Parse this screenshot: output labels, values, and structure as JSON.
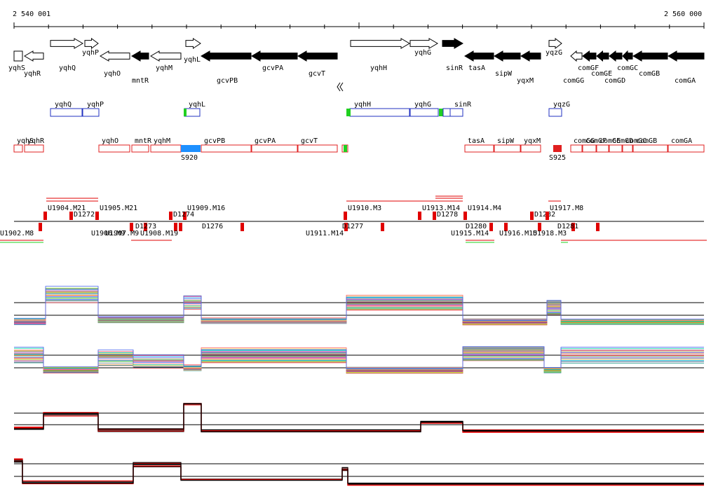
{
  "ruler": {
    "start_label": "2 540 001",
    "end_label": "2 560 000"
  },
  "colors": {
    "background": "#ffffff",
    "gene_outline": "#000000",
    "gene_fill_dark": "#000000",
    "operon_blue": "#2030c0",
    "operon_red": "#e02020",
    "highlight_blue": "#1e90ff",
    "marker_green": "#20d020",
    "signal_red": "#e00000",
    "signal_black": "#000000"
  },
  "genes": [
    {
      "label": "yqhS",
      "strand": "-",
      "shape": "box",
      "fill": "white"
    },
    {
      "label": "yqhR",
      "strand": "-",
      "fill": "white"
    },
    {
      "label": "yqhQ",
      "strand": "+",
      "fill": "white"
    },
    {
      "label": "yqhP",
      "strand": "+",
      "fill": "white"
    },
    {
      "label": "yqhO",
      "strand": "-",
      "fill": "white"
    },
    {
      "label": "mntR",
      "strand": "-",
      "fill": "black"
    },
    {
      "label": "yqhM",
      "strand": "-",
      "fill": "white"
    },
    {
      "label": "yqhL",
      "strand": "+",
      "fill": "white"
    },
    {
      "label": "gcvPB",
      "strand": "-",
      "fill": "black"
    },
    {
      "label": "gcvPA",
      "strand": "-",
      "fill": "black"
    },
    {
      "label": "gcvT",
      "strand": "-",
      "fill": "black"
    },
    {
      "label": "yqhH",
      "strand": "+",
      "fill": "white"
    },
    {
      "label": "yqhG",
      "strand": "+",
      "fill": "white"
    },
    {
      "label": "sinR",
      "strand": "+",
      "fill": "black"
    },
    {
      "label": "tasA",
      "strand": "-",
      "fill": "black"
    },
    {
      "label": "sipW",
      "strand": "-",
      "fill": "black"
    },
    {
      "label": "yqxM",
      "strand": "-",
      "fill": "black"
    },
    {
      "label": "yqzG",
      "strand": "+",
      "fill": "white"
    },
    {
      "label": "comGG",
      "strand": "-",
      "fill": "white"
    },
    {
      "label": "comGF",
      "strand": "-",
      "fill": "black"
    },
    {
      "label": "comGE",
      "strand": "-",
      "fill": "black"
    },
    {
      "label": "comGD",
      "strand": "-",
      "fill": "black"
    },
    {
      "label": "comGC",
      "strand": "-",
      "fill": "black"
    },
    {
      "label": "comGB",
      "strand": "-",
      "fill": "black"
    },
    {
      "label": "comGA",
      "strand": "-",
      "fill": "black"
    }
  ],
  "plus_operons": [
    "yqhQ",
    "yqhP",
    "yqhL",
    "yqhH",
    "yqhG",
    "sinR",
    "yqzG"
  ],
  "minus_operons": [
    "yqhS",
    "yqhR",
    "yqhO",
    "mntR",
    "yqhM",
    "gcvPB",
    "gcvPA",
    "gcvT",
    "tasA",
    "sipW",
    "yqxM",
    "comGG",
    "comGF",
    "comGE",
    "comGD",
    "comGC",
    "comGB",
    "comGA"
  ],
  "operon_highlights": [
    "S920",
    "S925"
  ],
  "segments_upper": [
    "U1904.M21",
    "U1905.M21",
    "D1272",
    "U1909.M16",
    "D1274",
    "U1910.M3",
    "U1913.M14",
    "D1278",
    "U1914.M4",
    "D1282",
    "U1917.M8"
  ],
  "segments_lower": [
    "U1902.M8",
    "U1906.M9",
    "U1907.M9",
    "D1273",
    "U1908.M19",
    "D1276",
    "U1911.M14",
    "D1277",
    "U1915.M14",
    "D1280",
    "U1916.M15",
    "U1918.M3",
    "D1281"
  ],
  "tracks": [
    {
      "name": "expression-track-1",
      "kind": "multicolor"
    },
    {
      "name": "expression-track-2",
      "kind": "multicolor"
    },
    {
      "name": "expression-track-3",
      "kind": "red-black"
    },
    {
      "name": "expression-track-4",
      "kind": "red-black"
    }
  ]
}
